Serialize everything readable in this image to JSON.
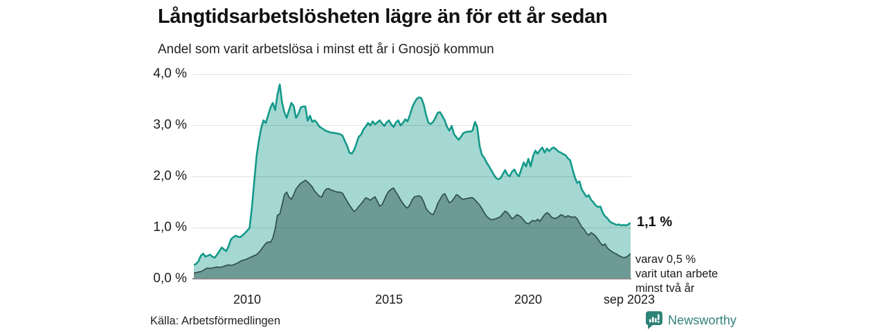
{
  "header": {
    "title": "Långtidsarbetslösheten lägre än för ett år sedan",
    "subtitle": "Andel som varit arbetslösa i minst ett år i Gnosjö kommun"
  },
  "chart_data": {
    "type": "area",
    "unit": "%",
    "frequency": "monthly",
    "x_start": "2008-01",
    "x_end": "2023-09",
    "ylim": [
      0,
      4
    ],
    "grid": true,
    "y_ticks": [
      4,
      3,
      2,
      1,
      0
    ],
    "y_tick_labels": [
      "4,0 %",
      "3,0 %",
      "2,0 %",
      "1,0 %",
      "0,0 %"
    ],
    "x_tick_labels": [
      "2010",
      "2015",
      "2020",
      "sep 2023"
    ],
    "series": [
      {
        "name": "arbetslösa minst ett år",
        "fill": "#a5d8d2",
        "line": "#13998a",
        "values": [
          0.28,
          0.3,
          0.35,
          0.46,
          0.5,
          0.44,
          0.46,
          0.48,
          0.44,
          0.42,
          0.48,
          0.55,
          0.62,
          0.58,
          0.55,
          0.65,
          0.78,
          0.82,
          0.85,
          0.83,
          0.82,
          0.86,
          0.9,
          0.95,
          1.0,
          1.4,
          1.9,
          2.4,
          2.7,
          2.95,
          3.1,
          3.05,
          3.2,
          3.35,
          3.44,
          3.3,
          3.6,
          3.8,
          3.45,
          3.25,
          3.15,
          3.3,
          3.44,
          3.38,
          3.15,
          3.22,
          3.35,
          3.37,
          3.37,
          3.09,
          3.19,
          3.07,
          3.1,
          3.05,
          2.98,
          2.95,
          2.92,
          2.89,
          2.88,
          2.86,
          2.86,
          2.85,
          2.84,
          2.83,
          2.8,
          2.7,
          2.6,
          2.47,
          2.45,
          2.52,
          2.65,
          2.78,
          2.82,
          2.92,
          2.98,
          3.05,
          3.0,
          3.08,
          3.02,
          3.06,
          3.1,
          3.04,
          2.99,
          3.06,
          3.1,
          3.02,
          2.97,
          3.06,
          3.1,
          3.0,
          3.05,
          3.12,
          3.08,
          3.2,
          3.35,
          3.45,
          3.52,
          3.55,
          3.53,
          3.4,
          3.2,
          3.05,
          3.03,
          3.07,
          3.15,
          3.25,
          3.26,
          3.18,
          3.1,
          2.97,
          2.9,
          2.99,
          2.83,
          2.77,
          2.72,
          2.78,
          2.85,
          2.87,
          2.88,
          2.88,
          2.9,
          3.07,
          2.97,
          2.6,
          2.43,
          2.37,
          2.28,
          2.21,
          2.13,
          2.05,
          1.98,
          1.95,
          1.97,
          2.05,
          2.13,
          2.04,
          2.01,
          2.1,
          2.14,
          2.05,
          2.01,
          2.15,
          2.28,
          2.2,
          2.35,
          2.2,
          2.4,
          2.51,
          2.45,
          2.52,
          2.57,
          2.47,
          2.55,
          2.5,
          2.55,
          2.57,
          2.53,
          2.49,
          2.47,
          2.44,
          2.42,
          2.36,
          2.32,
          2.15,
          1.99,
          1.88,
          1.91,
          1.75,
          1.68,
          1.61,
          1.64,
          1.55,
          1.5,
          1.44,
          1.41,
          1.42,
          1.3,
          1.23,
          1.19,
          1.13,
          1.1,
          1.08,
          1.06,
          1.07,
          1.05,
          1.06,
          1.05,
          1.07,
          1.1
        ]
      },
      {
        "name": "varit utan arbete minst två år",
        "fill": "#6d9a94",
        "line": "#2f4f4b",
        "values": [
          0.12,
          0.13,
          0.14,
          0.15,
          0.17,
          0.2,
          0.22,
          0.21,
          0.22,
          0.23,
          0.24,
          0.23,
          0.24,
          0.25,
          0.27,
          0.28,
          0.27,
          0.28,
          0.3,
          0.32,
          0.35,
          0.37,
          0.38,
          0.4,
          0.42,
          0.44,
          0.46,
          0.48,
          0.52,
          0.58,
          0.64,
          0.7,
          0.73,
          0.72,
          0.8,
          0.98,
          1.25,
          1.27,
          1.45,
          1.65,
          1.7,
          1.6,
          1.56,
          1.65,
          1.76,
          1.82,
          1.87,
          1.9,
          1.93,
          1.9,
          1.85,
          1.8,
          1.72,
          1.67,
          1.62,
          1.6,
          1.7,
          1.76,
          1.77,
          1.74,
          1.73,
          1.71,
          1.7,
          1.7,
          1.68,
          1.6,
          1.52,
          1.45,
          1.38,
          1.32,
          1.36,
          1.42,
          1.47,
          1.53,
          1.59,
          1.57,
          1.54,
          1.58,
          1.61,
          1.52,
          1.43,
          1.45,
          1.55,
          1.65,
          1.72,
          1.76,
          1.78,
          1.7,
          1.63,
          1.55,
          1.48,
          1.42,
          1.39,
          1.45,
          1.55,
          1.61,
          1.62,
          1.63,
          1.6,
          1.5,
          1.38,
          1.32,
          1.28,
          1.26,
          1.35,
          1.48,
          1.56,
          1.64,
          1.67,
          1.58,
          1.49,
          1.52,
          1.58,
          1.65,
          1.63,
          1.58,
          1.56,
          1.57,
          1.58,
          1.59,
          1.59,
          1.55,
          1.5,
          1.45,
          1.38,
          1.3,
          1.23,
          1.19,
          1.16,
          1.17,
          1.18,
          1.2,
          1.22,
          1.28,
          1.33,
          1.3,
          1.24,
          1.18,
          1.21,
          1.26,
          1.24,
          1.21,
          1.15,
          1.1,
          1.08,
          1.12,
          1.15,
          1.13,
          1.17,
          1.13,
          1.2,
          1.26,
          1.3,
          1.27,
          1.21,
          1.19,
          1.19,
          1.22,
          1.26,
          1.24,
          1.21,
          1.24,
          1.22,
          1.21,
          1.22,
          1.18,
          1.1,
          1.02,
          0.97,
          0.9,
          0.86,
          0.91,
          0.88,
          0.84,
          0.78,
          0.71,
          0.66,
          0.69,
          0.61,
          0.57,
          0.54,
          0.51,
          0.49,
          0.46,
          0.44,
          0.42,
          0.43,
          0.46,
          0.5
        ]
      }
    ],
    "annotations": {
      "end_value_label": "1,1 %",
      "sub_label": "varav 0,5 %\nvarit utan arbete\nminst två år"
    }
  },
  "footer": {
    "source": "Källa: Arbetsförmedlingen",
    "brand": "Newsworthy",
    "brand_color": "#2e8378"
  }
}
